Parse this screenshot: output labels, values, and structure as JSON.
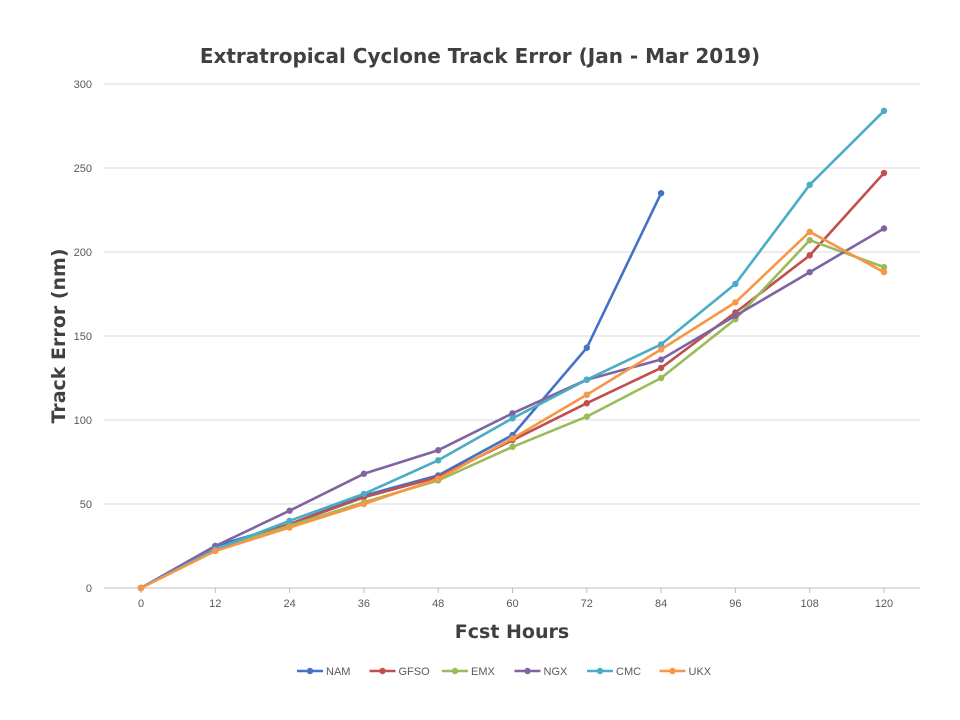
{
  "chart_data": {
    "type": "line",
    "title": "Extratropical Cyclone Track Error (Jan - Mar 2019)",
    "xlabel": "Fcst Hours",
    "ylabel": "Track Error  (nm)",
    "x": [
      0,
      12,
      24,
      36,
      48,
      60,
      72,
      84,
      96,
      108,
      120
    ],
    "ylim": [
      0,
      300
    ],
    "yticks": [
      0,
      50,
      100,
      150,
      200,
      250,
      300
    ],
    "grid": "horizontal",
    "legend_position": "bottom",
    "series": [
      {
        "name": "NAM",
        "color": "#4472C4",
        "values": [
          0,
          25,
          38,
          55,
          67,
          91,
          143,
          235,
          null,
          null,
          null
        ]
      },
      {
        "name": "GFSO",
        "color": "#C0504D",
        "values": [
          0,
          23,
          38,
          54,
          66,
          88,
          110,
          131,
          164,
          198,
          247
        ]
      },
      {
        "name": "EMX",
        "color": "#9BBB59",
        "values": [
          0,
          23,
          37,
          51,
          64,
          84,
          102,
          125,
          160,
          207,
          191
        ]
      },
      {
        "name": "NGX",
        "color": "#8064A2",
        "values": [
          0,
          25,
          46,
          68,
          82,
          104,
          124,
          136,
          162,
          188,
          214
        ]
      },
      {
        "name": "CMC",
        "color": "#4BACC6",
        "values": [
          0,
          23,
          40,
          56,
          76,
          101,
          124,
          145,
          181,
          240,
          284
        ]
      },
      {
        "name": "UKX",
        "color": "#F79646",
        "values": [
          0,
          22,
          36,
          50,
          65,
          89,
          115,
          142,
          170,
          212,
          188
        ]
      }
    ]
  }
}
